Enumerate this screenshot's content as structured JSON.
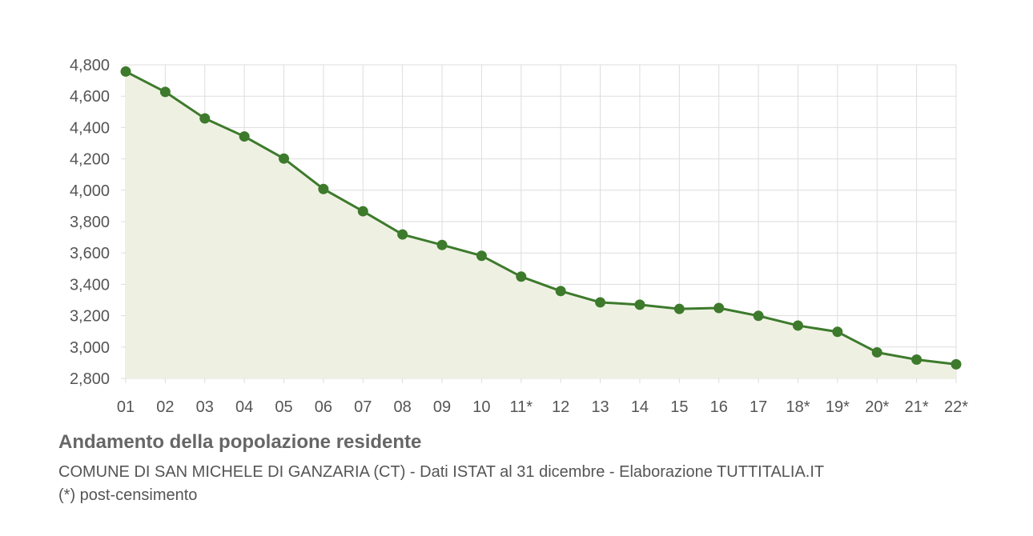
{
  "chart_data": {
    "type": "area",
    "title": "Andamento della popolazione residente",
    "subtitle": "COMUNE DI SAN MICHELE DI GANZARIA (CT) - Dati ISTAT al 31 dicembre - Elaborazione TUTTITALIA.IT",
    "note": "(*) post-censimento",
    "categories": [
      "01",
      "02",
      "03",
      "04",
      "05",
      "06",
      "07",
      "08",
      "09",
      "10",
      "11*",
      "12",
      "13",
      "14",
      "15",
      "16",
      "17",
      "18*",
      "19*",
      "20*",
      "21*",
      "22*"
    ],
    "values": [
      4757,
      4627,
      4458,
      4343,
      4202,
      4008,
      3866,
      3718,
      3651,
      3582,
      3449,
      3357,
      3285,
      3270,
      3243,
      3249,
      3199,
      3137,
      3097,
      2966,
      2920,
      2890
    ],
    "ylim": [
      2800,
      4800
    ],
    "yticks": [
      2800,
      3000,
      3200,
      3400,
      3600,
      3800,
      4000,
      4200,
      4400,
      4600,
      4800
    ],
    "ytick_labels": [
      "2,800",
      "3,000",
      "3,200",
      "3,400",
      "3,600",
      "3,800",
      "4,000",
      "4,200",
      "4,400",
      "4,600",
      "4,800"
    ],
    "grid": true,
    "colors": {
      "line": "#3d7a2c",
      "fill": "#eef1e2",
      "grid": "#dddddd"
    }
  }
}
